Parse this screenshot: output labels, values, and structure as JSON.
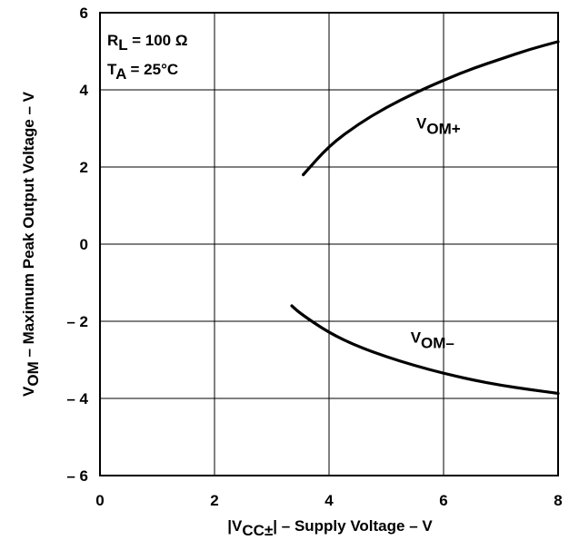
{
  "chart_data": {
    "type": "line",
    "xlabel": {
      "prefix": "|V",
      "sub": "CC±",
      "suffix": "| – Supply Voltage – V"
    },
    "ylabel": {
      "prefix": "V",
      "sub": "OM",
      "suffix": " – Maximum Peak Output Voltage – V"
    },
    "xlim": [
      0,
      8
    ],
    "ylim": [
      -6,
      6
    ],
    "x_ticks": [
      "0",
      "2",
      "4",
      "6",
      "8"
    ],
    "y_ticks": [
      "6",
      "4",
      "2",
      "0",
      "– 2",
      "– 4",
      "– 6"
    ],
    "grid": true,
    "conditions": [
      {
        "prefix": "R",
        "sub": "L",
        "suffix": " = 100 Ω"
      },
      {
        "prefix": "T",
        "sub": "A",
        "suffix": " = 25°C"
      }
    ],
    "series": [
      {
        "name": "VOM+",
        "label": {
          "prefix": "V",
          "sub": "OM+",
          "x": 6.0,
          "y": 3.0
        },
        "x": [
          3.55,
          4.0,
          4.5,
          5.0,
          5.5,
          6.0,
          6.5,
          7.0,
          7.5,
          8.0
        ],
        "y": [
          1.8,
          2.55,
          3.1,
          3.55,
          3.92,
          4.25,
          4.55,
          4.8,
          5.05,
          5.25
        ]
      },
      {
        "name": "VOM–",
        "label": {
          "prefix": "V",
          "sub": "OM–",
          "x": 5.9,
          "y": -2.55
        },
        "x": [
          3.35,
          3.5,
          4.0,
          4.5,
          5.0,
          5.5,
          6.0,
          6.5,
          7.0,
          7.5,
          8.0
        ],
        "y": [
          -1.6,
          -1.8,
          -2.3,
          -2.65,
          -2.92,
          -3.15,
          -3.35,
          -3.52,
          -3.66,
          -3.77,
          -3.87
        ]
      }
    ]
  }
}
